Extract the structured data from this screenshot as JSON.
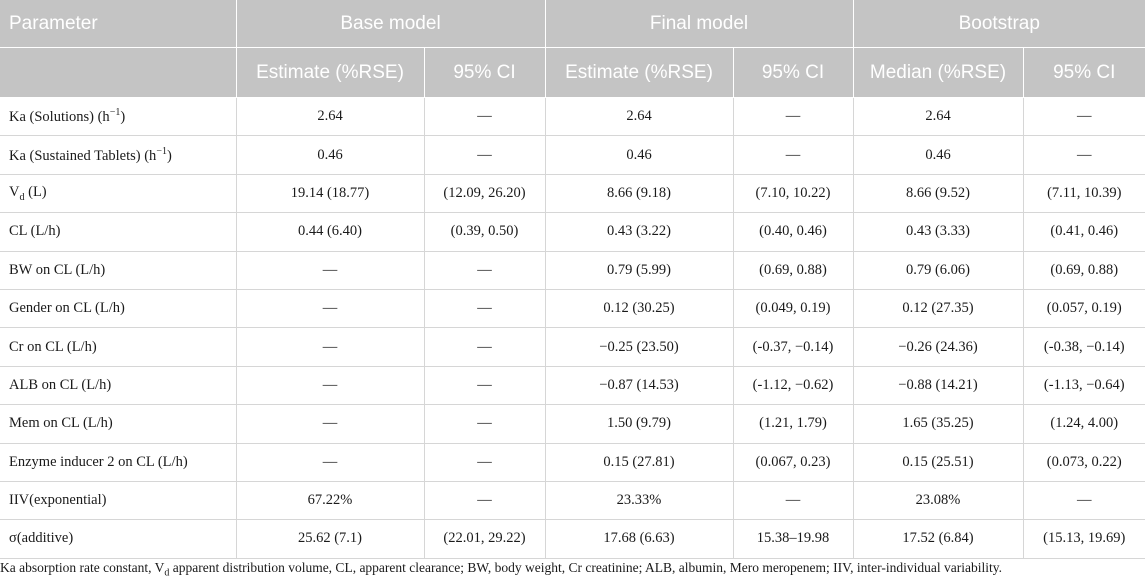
{
  "header": {
    "parameter": "Parameter",
    "groups": [
      "Base model",
      "Final model",
      "Bootstrap"
    ],
    "subheaders": [
      "Estimate (%RSE)",
      "95% CI",
      "Estimate (%RSE)",
      "95% CI",
      "Median (%RSE)",
      "95% CI"
    ]
  },
  "rows": [
    {
      "param": {
        "main": "Ka (Solutions) (h",
        "sup": "−1",
        "tail": ")"
      },
      "values": [
        "2.64",
        "—",
        "2.64",
        "—",
        "2.64",
        "—"
      ]
    },
    {
      "param": {
        "main": "Ka (Sustained Tablets) (h",
        "sup": "−1",
        "tail": ")"
      },
      "values": [
        "0.46",
        "—",
        "0.46",
        "—",
        "0.46",
        "—"
      ]
    },
    {
      "param": {
        "main": "V",
        "sub": "d",
        "tail": " (L)"
      },
      "values": [
        "19.14 (18.77)",
        "(12.09, 26.20)",
        "8.66 (9.18)",
        "(7.10, 10.22)",
        "8.66 (9.52)",
        "(7.11, 10.39)"
      ]
    },
    {
      "param": {
        "main": "CL (L/h)"
      },
      "values": [
        "0.44 (6.40)",
        "(0.39, 0.50)",
        "0.43 (3.22)",
        "(0.40, 0.46)",
        "0.43 (3.33)",
        "(0.41, 0.46)"
      ]
    },
    {
      "param": {
        "main": "BW on CL (L/h)"
      },
      "values": [
        "—",
        "—",
        "0.79 (5.99)",
        "(0.69, 0.88)",
        "0.79 (6.06)",
        "(0.69, 0.88)"
      ]
    },
    {
      "param": {
        "main": "Gender on CL (L/h)"
      },
      "values": [
        "—",
        "—",
        "0.12 (30.25)",
        "(0.049, 0.19)",
        "0.12 (27.35)",
        "(0.057, 0.19)"
      ]
    },
    {
      "param": {
        "main": "Cr on CL (L/h)"
      },
      "values": [
        "—",
        "—",
        "−0.25 (23.50)",
        "(-0.37, −0.14)",
        "−0.26 (24.36)",
        "(-0.38, −0.14)"
      ]
    },
    {
      "param": {
        "main": "ALB on CL (L/h)"
      },
      "values": [
        "—",
        "—",
        "−0.87 (14.53)",
        "(-1.12, −0.62)",
        "−0.88 (14.21)",
        "(-1.13, −0.64)"
      ]
    },
    {
      "param": {
        "main": "Mem on CL (L/h)"
      },
      "values": [
        "—",
        "—",
        "1.50 (9.79)",
        "(1.21, 1.79)",
        "1.65 (35.25)",
        "(1.24, 4.00)"
      ]
    },
    {
      "param": {
        "main": "Enzyme inducer 2 on CL (L/h)"
      },
      "values": [
        "—",
        "—",
        "0.15 (27.81)",
        "(0.067, 0.23)",
        "0.15 (25.51)",
        "(0.073, 0.22)"
      ]
    },
    {
      "param": {
        "main": "IIV(exponential)"
      },
      "values": [
        "67.22%",
        "—",
        "23.33%",
        "—",
        "23.08%",
        "—"
      ]
    },
    {
      "param": {
        "main": "σ(additive)"
      },
      "values": [
        "25.62 (7.1)",
        "(22.01, 29.22)",
        "17.68 (6.63)",
        "15.38–19.98",
        "17.52 (6.84)",
        "(15.13, 19.69)"
      ]
    }
  ],
  "footnote": {
    "before": "Ka absorption rate constant, V",
    "sub": "d",
    "after": " apparent distribution volume, CL, apparent clearance; BW, body weight, Cr creatinine; ALB, albumin, Mero meropenem; IIV, inter-individual variability."
  }
}
